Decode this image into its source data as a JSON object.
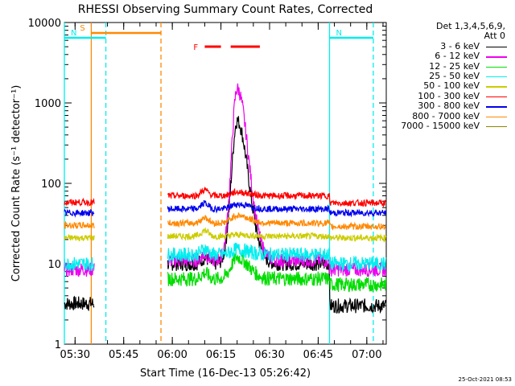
{
  "chart_data": {
    "type": "line",
    "title": "RHESSI Observing Summary Count Rates, Corrected",
    "xlabel": "Start Time (16-Dec-13 05:26:42)",
    "ylabel": "Corrected Count Rate (s⁻¹ detector⁻¹)",
    "y_scale": "log",
    "ylim": [
      1,
      10000
    ],
    "xlim": [
      "05:26:42",
      "07:06:00"
    ],
    "x_ticks": [
      "05:30",
      "05:45",
      "06:00",
      "06:15",
      "06:30",
      "06:45",
      "07:00"
    ],
    "y_ticks": [
      "1",
      "10",
      "100",
      "1000",
      "10000"
    ],
    "legend_header": [
      "Det 1,3,4,5,6,9,",
      "Att 0"
    ],
    "series": [
      {
        "name": "3 - 6 keV",
        "color": "#000000",
        "baseline_before": 3.2,
        "baseline_during": 10,
        "baseline_after": 3.0,
        "peak": 600
      },
      {
        "name": "6 - 12 keV",
        "color": "#ee00ee",
        "baseline_before": 8.5,
        "baseline_during": 11,
        "baseline_after": 8.5,
        "peak": 1500
      },
      {
        "name": "12 - 25 keV",
        "color": "#00dd00",
        "baseline_before": 0,
        "baseline_during": 6.5,
        "baseline_after": 5.5,
        "peak": 12
      },
      {
        "name": "25 - 50 keV",
        "color": "#00eeee",
        "baseline_before": 10,
        "baseline_during": 13,
        "baseline_after": 10,
        "peak": 15
      },
      {
        "name": "50 - 100 keV",
        "color": "#cccc00",
        "baseline_before": 21,
        "baseline_during": 22,
        "baseline_after": 21,
        "peak": 23
      },
      {
        "name": "100 - 300 keV",
        "color": "#ff0000",
        "baseline_before": 58,
        "baseline_during": 70,
        "baseline_after": 57,
        "peak": 78
      },
      {
        "name": "300 - 800 keV",
        "color": "#0000ee",
        "baseline_before": 43,
        "baseline_during": 48,
        "baseline_after": 43,
        "peak": 55
      },
      {
        "name": "800 - 7000 keV",
        "color": "#ff8800",
        "baseline_before": 30,
        "baseline_during": 32,
        "baseline_after": 29,
        "peak": 40
      },
      {
        "name": "7000 - 15000 keV",
        "color": "#888800",
        "baseline_before": 0,
        "baseline_during": 0,
        "baseline_after": 0,
        "peak": 0
      }
    ],
    "segments": {
      "data_gaps": [
        [
          "05:36:00",
          "05:58:30"
        ]
      ],
      "flare_time": "06:20:00"
    },
    "flags": [
      {
        "label": "S",
        "color": "#ff8800",
        "start": "05:35:00",
        "end": "05:56:30"
      },
      {
        "label": "N",
        "color": "#00eeee",
        "start": "05:26:42",
        "end": "05:39:30"
      },
      {
        "label": "N",
        "color": "#00eeee",
        "start": "06:48:30",
        "end": "07:02:00"
      },
      {
        "label": "F",
        "color": "#ff0000",
        "segments": [
          [
            "06:10:00",
            "06:15:00"
          ],
          [
            "06:18:00",
            "06:27:00"
          ]
        ]
      }
    ],
    "vlines": [
      {
        "time": "05:26:42",
        "color": "#00eeee",
        "style": "solid"
      },
      {
        "time": "05:35:00",
        "color": "#ff8800",
        "style": "solid"
      },
      {
        "time": "05:39:30",
        "color": "#00eeee",
        "style": "dashed"
      },
      {
        "time": "05:56:30",
        "color": "#ff8800",
        "style": "dashed"
      },
      {
        "time": "06:48:30",
        "color": "#00eeee",
        "style": "solid"
      },
      {
        "time": "07:02:00",
        "color": "#00eeee",
        "style": "dashed"
      }
    ]
  },
  "timestamp": "25-Oct-2021 08:53"
}
